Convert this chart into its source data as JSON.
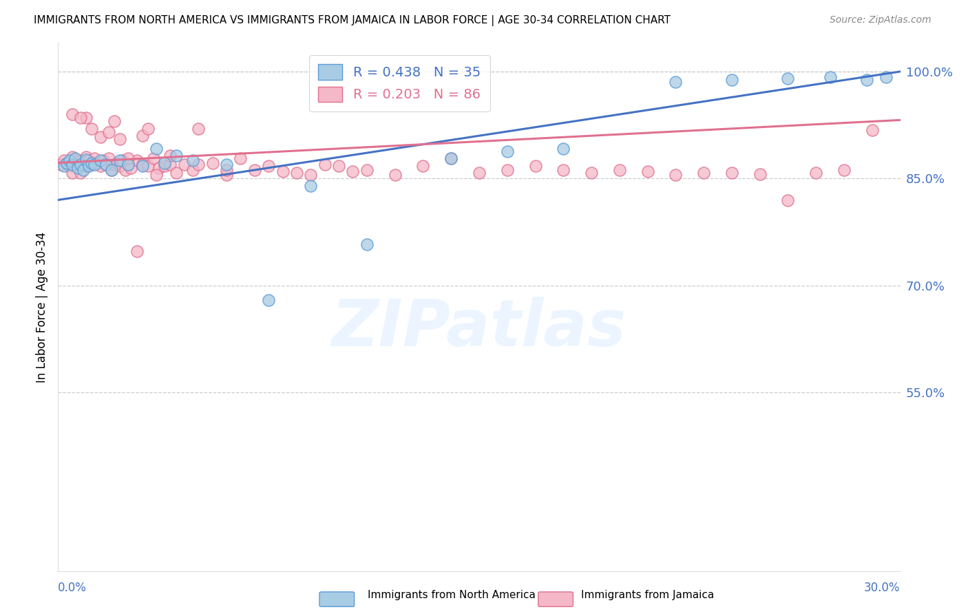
{
  "title": "IMMIGRANTS FROM NORTH AMERICA VS IMMIGRANTS FROM JAMAICA IN LABOR FORCE | AGE 30-34 CORRELATION CHART",
  "source": "Source: ZipAtlas.com",
  "ylabel": "In Labor Force | Age 30-34",
  "xlim": [
    0.0,
    0.3
  ],
  "ylim": [
    0.3,
    1.04
  ],
  "yticks": [
    0.55,
    0.7,
    0.85,
    1.0
  ],
  "ytick_labels": [
    "55.0%",
    "70.0%",
    "85.0%",
    "100.0%"
  ],
  "blue_color": "#a8cce4",
  "blue_edge_color": "#5b9bd5",
  "blue_line_color": "#4472c4",
  "pink_color": "#f4b8c8",
  "pink_edge_color": "#e07090",
  "pink_line_color": "#e07090",
  "R_blue": 0.438,
  "N_blue": 35,
  "R_pink": 0.203,
  "N_pink": 86,
  "watermark": "ZIPatlas",
  "axis_label_color": "#4472c4",
  "grid_color": "#cccccc",
  "background_color": "#ffffff",
  "blue_scatter_x": [
    0.002,
    0.003,
    0.004,
    0.005,
    0.006,
    0.007,
    0.008,
    0.009,
    0.01,
    0.011,
    0.012,
    0.013,
    0.015,
    0.017,
    0.019,
    0.022,
    0.025,
    0.03,
    0.035,
    0.038,
    0.042,
    0.048,
    0.06,
    0.075,
    0.09,
    0.11,
    0.14,
    0.16,
    0.18,
    0.22,
    0.24,
    0.26,
    0.275,
    0.288,
    0.295
  ],
  "blue_scatter_y": [
    0.868,
    0.872,
    0.875,
    0.87,
    0.878,
    0.865,
    0.87,
    0.862,
    0.876,
    0.868,
    0.872,
    0.87,
    0.875,
    0.87,
    0.862,
    0.875,
    0.87,
    0.868,
    0.892,
    0.872,
    0.882,
    0.875,
    0.87,
    0.68,
    0.84,
    0.758,
    0.878,
    0.888,
    0.892,
    0.985,
    0.988,
    0.99,
    0.992,
    0.988,
    0.992
  ],
  "pink_scatter_x": [
    0.001,
    0.002,
    0.003,
    0.004,
    0.005,
    0.005,
    0.006,
    0.007,
    0.008,
    0.008,
    0.009,
    0.01,
    0.01,
    0.011,
    0.012,
    0.013,
    0.014,
    0.015,
    0.016,
    0.017,
    0.018,
    0.019,
    0.02,
    0.021,
    0.022,
    0.023,
    0.024,
    0.025,
    0.026,
    0.028,
    0.03,
    0.032,
    0.034,
    0.036,
    0.038,
    0.04,
    0.042,
    0.045,
    0.048,
    0.05,
    0.055,
    0.06,
    0.065,
    0.07,
    0.075,
    0.08,
    0.085,
    0.09,
    0.095,
    0.1,
    0.105,
    0.11,
    0.12,
    0.13,
    0.14,
    0.15,
    0.16,
    0.17,
    0.18,
    0.19,
    0.2,
    0.21,
    0.22,
    0.23,
    0.24,
    0.25,
    0.26,
    0.27,
    0.28,
    0.29,
    0.005,
    0.01,
    0.015,
    0.02,
    0.025,
    0.03,
    0.035,
    0.04,
    0.05,
    0.06,
    0.008,
    0.012,
    0.018,
    0.022,
    0.028,
    0.032
  ],
  "pink_scatter_y": [
    0.87,
    0.875,
    0.872,
    0.868,
    0.88,
    0.858,
    0.876,
    0.87,
    0.875,
    0.858,
    0.872,
    0.868,
    0.88,
    0.875,
    0.87,
    0.878,
    0.872,
    0.868,
    0.875,
    0.87,
    0.878,
    0.862,
    0.87,
    0.872,
    0.868,
    0.875,
    0.862,
    0.87,
    0.865,
    0.875,
    0.87,
    0.868,
    0.878,
    0.865,
    0.868,
    0.87,
    0.858,
    0.87,
    0.862,
    0.87,
    0.872,
    0.855,
    0.878,
    0.862,
    0.868,
    0.86,
    0.858,
    0.855,
    0.87,
    0.868,
    0.86,
    0.862,
    0.855,
    0.868,
    0.878,
    0.858,
    0.862,
    0.868,
    0.862,
    0.858,
    0.862,
    0.86,
    0.855,
    0.858,
    0.858,
    0.856,
    0.82,
    0.858,
    0.862,
    0.918,
    0.94,
    0.935,
    0.908,
    0.93,
    0.878,
    0.91,
    0.855,
    0.882,
    0.92,
    0.862,
    0.935,
    0.92,
    0.915,
    0.905,
    0.748,
    0.92
  ]
}
